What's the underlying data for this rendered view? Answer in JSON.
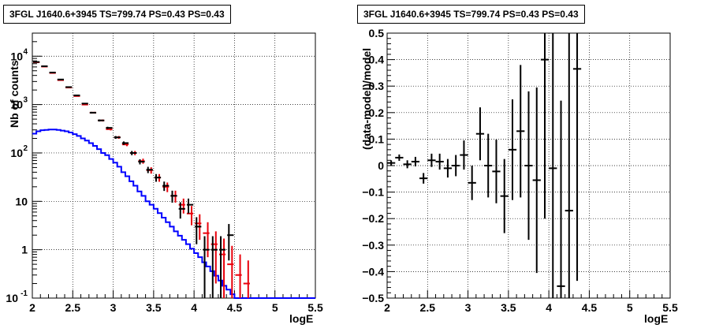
{
  "chart_data": [
    {
      "type": "line",
      "title": "3FGL J1640.6+3945 TS=799.74 PS=0.43 PS=0.43",
      "xlabel": "logE",
      "ylabel": "Nb of counts",
      "xlim": [
        2,
        5.5
      ],
      "ylim": [
        0.1,
        30000
      ],
      "y_scale": "log",
      "grid": true,
      "x_ticks": [
        "2",
        "2.5",
        "3",
        "3.5",
        "4",
        "4.5",
        "5",
        "5.5"
      ],
      "y_ticks": [
        {
          "value": 0.1,
          "label": "10",
          "exp": "-1"
        },
        {
          "value": 1,
          "label": "1",
          "exp": ""
        },
        {
          "value": 10,
          "label": "10",
          "exp": ""
        },
        {
          "value": 100,
          "label": "10",
          "exp": "2"
        },
        {
          "value": 1000,
          "label": "10",
          "exp": "3"
        },
        {
          "value": 10000,
          "label": "10",
          "exp": "4"
        }
      ],
      "series": [
        {
          "color": "#000000",
          "x": [
            2.05,
            2.15,
            2.25,
            2.35,
            2.45,
            2.55,
            2.65,
            2.75,
            2.85,
            2.95,
            3.05,
            3.15,
            3.25,
            3.35,
            3.45,
            3.55,
            3.65,
            3.75,
            3.85,
            3.95,
            4.05,
            4.15,
            4.25,
            4.35,
            4.45
          ],
          "y": [
            7600,
            6200,
            4600,
            3300,
            2300,
            1550,
            1050,
            680,
            470,
            330,
            210,
            160,
            100,
            66,
            45,
            31,
            21,
            13,
            7,
            8.5,
            3,
            1,
            1,
            1,
            2
          ],
          "y_err": [
            87,
            79,
            68,
            57,
            48,
            39,
            32,
            26,
            22,
            18,
            14,
            13,
            10,
            8,
            6.7,
            5.6,
            4.6,
            3.6,
            2.6,
            2.9,
            1.7,
            0.9,
            0.9,
            0.9,
            1.4
          ]
        },
        {
          "color": "#e8000b",
          "x": [
            2.05,
            2.15,
            2.25,
            2.35,
            2.45,
            2.55,
            2.65,
            2.75,
            2.85,
            2.95,
            3.05,
            3.15,
            3.25,
            3.35,
            3.45,
            3.55,
            3.65,
            3.75,
            3.85,
            3.95,
            4.05,
            4.15,
            4.25,
            4.35,
            4.45,
            4.55,
            4.65
          ],
          "y": [
            7500,
            6100,
            4500,
            3200,
            2250,
            1500,
            1000,
            680,
            470,
            310,
            210,
            150,
            100,
            68,
            44,
            31,
            20,
            13,
            8.5,
            5.6,
            3.5,
            2.2,
            1.3,
            0.8,
            0.5,
            0.3,
            0.2
          ],
          "y_err": [
            87,
            78,
            67,
            57,
            47,
            39,
            32,
            26,
            22,
            18,
            14,
            12,
            10,
            8.2,
            6.6,
            5.6,
            4.5,
            3.6,
            2.9,
            2.4,
            1.9,
            1.5,
            1.1,
            0.9,
            0.7,
            0.5,
            0.4
          ]
        },
        {
          "color": "#0000ff",
          "edges": [
            2.0,
            2.05,
            2.1,
            2.15,
            2.2,
            2.25,
            2.3,
            2.35,
            2.4,
            2.45,
            2.5,
            2.55,
            2.6,
            2.65,
            2.7,
            2.75,
            2.8,
            2.85,
            2.9,
            2.95,
            3.0,
            3.05,
            3.1,
            3.15,
            3.2,
            3.25,
            3.3,
            3.35,
            3.4,
            3.45,
            3.5,
            3.55,
            3.6,
            3.65,
            3.7,
            3.75,
            3.8,
            3.85,
            3.9,
            3.95,
            4.0,
            4.05,
            4.1,
            4.15,
            4.2,
            4.25,
            4.3,
            4.35,
            4.4,
            4.45,
            4.5,
            4.55,
            4.6,
            4.65,
            4.7,
            4.75,
            5.5
          ],
          "values": [
            250,
            280,
            295,
            300,
            305,
            305,
            300,
            290,
            280,
            265,
            245,
            225,
            200,
            180,
            160,
            140,
            120,
            100,
            90,
            75,
            63,
            52,
            40,
            33,
            26,
            21,
            16,
            13,
            10,
            8.5,
            7,
            5.7,
            4.6,
            3.7,
            3.0,
            2.4,
            1.95,
            1.6,
            1.3,
            1.05,
            0.85,
            0.7,
            0.55,
            0.45,
            0.36,
            0.29,
            0.23,
            0.18,
            0.15,
            0.12,
            0.1,
            0.1,
            0.1,
            0.1,
            0.1,
            0.1
          ]
        }
      ]
    },
    {
      "type": "scatter",
      "title": "3FGL J1640.6+3945 TS=799.74 PS=0.43 PS=0.43",
      "xlabel": "logE",
      "ylabel": "(data-model)/model",
      "xlim": [
        2,
        5.5
      ],
      "ylim": [
        -0.5,
        0.5
      ],
      "grid": true,
      "x_ticks": [
        "2",
        "2.5",
        "3",
        "3.5",
        "4",
        "4.5",
        "5",
        "5.5"
      ],
      "y_ticks": [
        "−0.5",
        "−0.4",
        "−0.3",
        "−0.2",
        "−0.1",
        "0",
        "0.1",
        "0.2",
        "0.3",
        "0.4",
        "0.5"
      ],
      "series": [
        {
          "color": "#000000",
          "x": [
            2.05,
            2.15,
            2.25,
            2.35,
            2.45,
            2.55,
            2.65,
            2.75,
            2.85,
            2.95,
            3.05,
            3.15,
            3.25,
            3.35,
            3.45,
            3.55,
            3.65,
            3.75,
            3.85,
            3.95,
            4.05,
            4.15,
            4.25,
            4.35
          ],
          "y": [
            0.01,
            0.03,
            0.005,
            0.015,
            -0.048,
            0.02,
            0.015,
            -0.01,
            0.0,
            0.04,
            -0.065,
            0.12,
            0.0,
            -0.022,
            -0.115,
            0.06,
            0.13,
            0.0,
            -0.055,
            0.4,
            -0.01,
            -0.455,
            -0.17,
            0.365
          ],
          "y_err": [
            0.01,
            0.012,
            0.015,
            0.018,
            0.02,
            0.025,
            0.03,
            0.035,
            0.04,
            0.055,
            0.065,
            0.1,
            0.12,
            0.12,
            0.14,
            0.19,
            0.25,
            0.28,
            0.35,
            0.6,
            0.7,
            0.7,
            0.8,
            0.8
          ]
        }
      ]
    }
  ]
}
